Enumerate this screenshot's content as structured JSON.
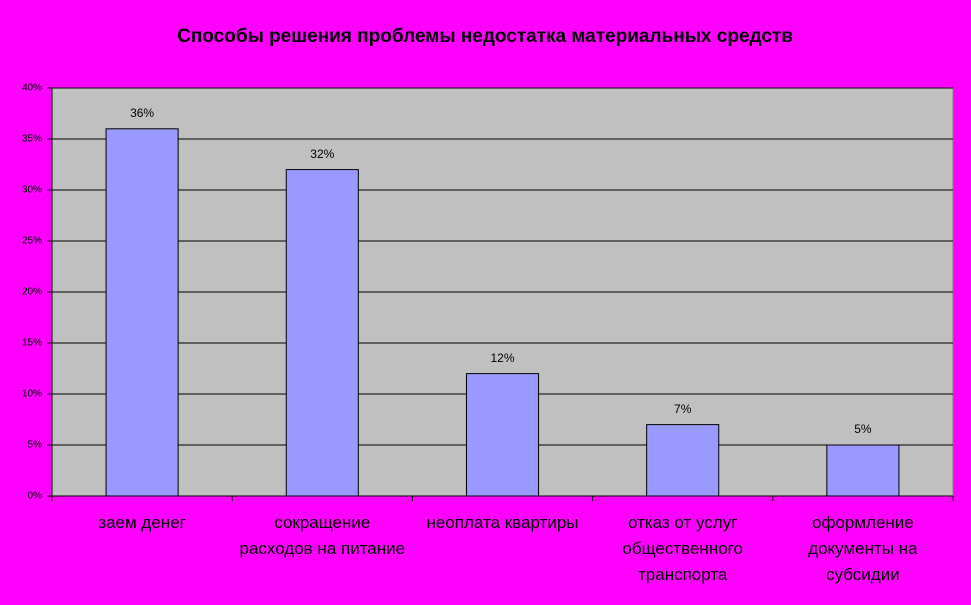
{
  "chart_data": {
    "type": "bar",
    "title": "Способы решения проблемы недостатка материальных средств",
    "categories": [
      "заем денег",
      "сокращение расходов на питание",
      "неоплата квартиры",
      "отказ от услуг общественного транспорта",
      "оформление документы на субсидии"
    ],
    "values": [
      36,
      32,
      12,
      7,
      5
    ],
    "value_labels": [
      "36%",
      "32%",
      "12%",
      "7%",
      "5%"
    ],
    "color": "#9999ff",
    "ylim": [
      0,
      40
    ],
    "yticks": [
      {
        "value": 0,
        "label": "0%"
      },
      {
        "value": 5,
        "label": "5%"
      },
      {
        "value": 10,
        "label": "10%"
      },
      {
        "value": 15,
        "label": "15%"
      },
      {
        "value": 20,
        "label": "20%"
      },
      {
        "value": 25,
        "label": "25%"
      },
      {
        "value": 30,
        "label": "30%"
      },
      {
        "value": 35,
        "label": "35%"
      },
      {
        "value": 40,
        "label": "40%"
      }
    ],
    "grid": true
  }
}
